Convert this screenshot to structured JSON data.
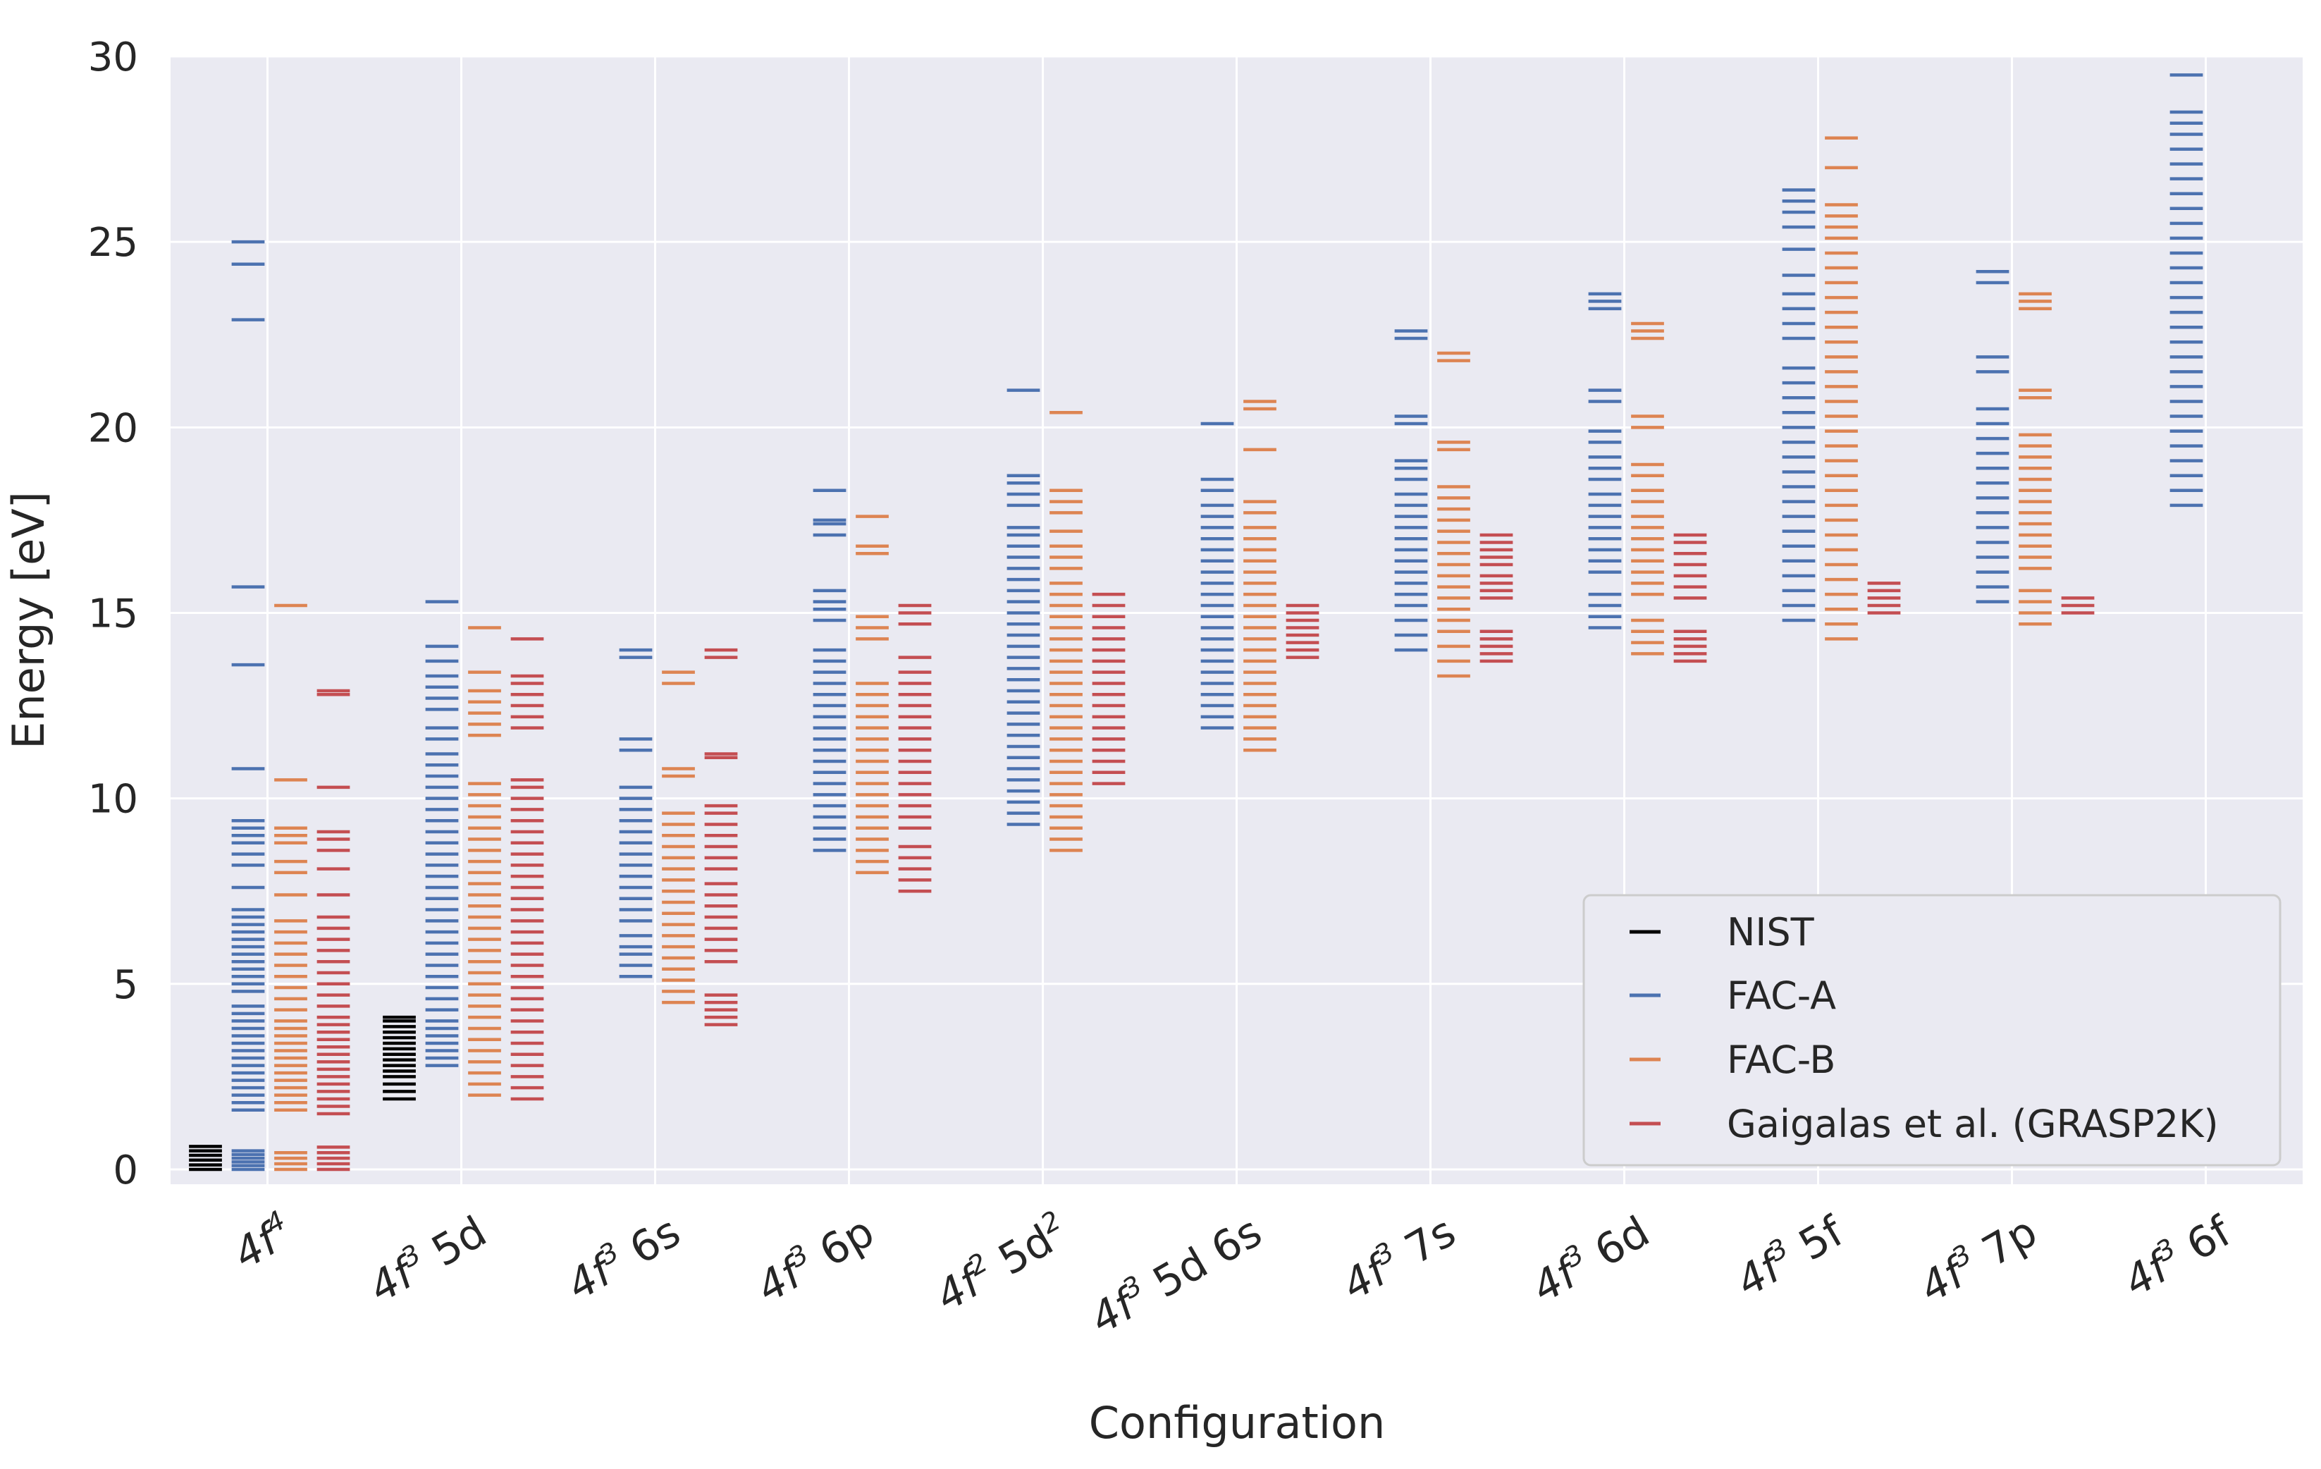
{
  "chart_data": {
    "type": "scatter",
    "title": "",
    "xlabel": "Configuration",
    "ylabel": "Energy [eV]",
    "ylim": [
      -0.4,
      30
    ],
    "yticks": [
      0,
      5,
      10,
      15,
      20,
      25,
      30
    ],
    "grid": true,
    "legend_position": "lower-right",
    "categories": [
      {
        "base": "4f",
        "sup": "4",
        "rest": ""
      },
      {
        "base": "4f",
        "sup": "3",
        "rest": " 5d"
      },
      {
        "base": "4f",
        "sup": "3",
        "rest": " 6s"
      },
      {
        "base": "4f",
        "sup": "3",
        "rest": " 6p"
      },
      {
        "base": "4f",
        "sup": "2",
        "rest": " 5d",
        "sup2": "2"
      },
      {
        "base": "4f",
        "sup": "3",
        "rest": " 5d 6s"
      },
      {
        "base": "4f",
        "sup": "3",
        "rest": " 7s"
      },
      {
        "base": "4f",
        "sup": "3",
        "rest": " 6d"
      },
      {
        "base": "4f",
        "sup": "3",
        "rest": " 5f"
      },
      {
        "base": "4f",
        "sup": "3",
        "rest": " 7p"
      },
      {
        "base": "4f",
        "sup": "3",
        "rest": " 6f"
      }
    ],
    "series": [
      {
        "name": "NIST",
        "color": "#000000",
        "levels": [
          [
            0.0,
            0.12,
            0.25,
            0.38,
            0.5,
            0.62
          ],
          [
            1.9,
            2.1,
            2.3,
            2.5,
            2.65,
            2.8,
            2.95,
            3.1,
            3.25,
            3.4,
            3.55,
            3.7,
            3.85,
            4.0,
            4.1
          ],
          [],
          [],
          [],
          [],
          [],
          [],
          [],
          [],
          []
        ]
      },
      {
        "name": "FAC-A",
        "color": "#4c72b0",
        "levels": [
          [
            0.0,
            0.1,
            0.2,
            0.3,
            0.4,
            0.5,
            1.6,
            1.8,
            2.0,
            2.2,
            2.4,
            2.6,
            2.8,
            3.0,
            3.2,
            3.4,
            3.6,
            3.8,
            4.0,
            4.2,
            4.4,
            4.8,
            5.0,
            5.2,
            5.4,
            5.6,
            5.8,
            6.0,
            6.2,
            6.4,
            6.6,
            6.8,
            7.0,
            7.6,
            8.2,
            8.5,
            8.8,
            9.0,
            9.2,
            9.4,
            10.8,
            13.6,
            15.7,
            22.9,
            24.4,
            25.0
          ],
          [
            2.8,
            3.0,
            3.2,
            3.4,
            3.6,
            3.8,
            4.0,
            4.3,
            4.6,
            4.9,
            5.2,
            5.5,
            5.8,
            6.1,
            6.4,
            6.7,
            7.0,
            7.3,
            7.6,
            7.9,
            8.2,
            8.5,
            8.8,
            9.1,
            9.4,
            9.7,
            10.0,
            10.3,
            10.6,
            10.9,
            11.2,
            11.6,
            11.9,
            12.4,
            12.7,
            13.0,
            13.3,
            13.7,
            14.1,
            15.3
          ],
          [
            5.2,
            5.5,
            5.8,
            6.0,
            6.3,
            6.7,
            7.0,
            7.3,
            7.6,
            7.9,
            8.2,
            8.5,
            8.8,
            9.1,
            9.4,
            9.7,
            10.0,
            10.3,
            11.3,
            11.6,
            13.8,
            14.0
          ],
          [
            8.6,
            8.9,
            9.2,
            9.5,
            9.8,
            10.1,
            10.4,
            10.7,
            11.0,
            11.3,
            11.6,
            11.9,
            12.2,
            12.5,
            12.8,
            13.1,
            13.4,
            13.7,
            14.0,
            14.8,
            15.1,
            15.3,
            15.6,
            17.1,
            17.4,
            17.5,
            18.3
          ],
          [
            9.3,
            9.6,
            9.9,
            10.2,
            10.5,
            10.8,
            11.1,
            11.4,
            11.7,
            12.0,
            12.3,
            12.6,
            12.9,
            13.2,
            13.5,
            13.8,
            14.1,
            14.4,
            14.7,
            15.0,
            15.3,
            15.6,
            15.9,
            16.2,
            16.5,
            16.8,
            17.1,
            17.3,
            17.9,
            18.2,
            18.5,
            18.7,
            21.0
          ],
          [
            11.9,
            12.2,
            12.5,
            12.8,
            13.1,
            13.4,
            13.7,
            14.0,
            14.3,
            14.6,
            14.9,
            15.2,
            15.5,
            15.8,
            16.1,
            16.4,
            16.7,
            17.0,
            17.3,
            17.6,
            17.9,
            18.3,
            18.6,
            20.1
          ],
          [
            14.0,
            14.4,
            14.8,
            15.2,
            15.5,
            15.8,
            16.1,
            16.4,
            16.7,
            17.0,
            17.3,
            17.6,
            17.9,
            18.2,
            18.6,
            18.9,
            19.1,
            20.1,
            20.3,
            22.4,
            22.6
          ],
          [
            14.6,
            14.9,
            15.2,
            15.5,
            16.1,
            16.4,
            16.7,
            17.0,
            17.3,
            17.6,
            17.9,
            18.2,
            18.6,
            18.9,
            19.2,
            19.6,
            19.9,
            20.7,
            21.0,
            23.2,
            23.4,
            23.6
          ],
          [
            14.8,
            15.2,
            15.6,
            16.0,
            16.4,
            16.8,
            17.2,
            17.6,
            18.0,
            18.4,
            18.8,
            19.2,
            19.6,
            20.0,
            20.4,
            20.8,
            21.2,
            21.6,
            22.4,
            22.8,
            23.2,
            23.6,
            24.1,
            24.8,
            25.4,
            25.8,
            26.1,
            26.4
          ],
          [
            15.3,
            15.7,
            16.1,
            16.5,
            16.9,
            17.3,
            17.7,
            18.1,
            18.5,
            18.9,
            19.3,
            19.7,
            20.1,
            20.5,
            21.5,
            21.9,
            23.9,
            24.2
          ],
          [
            17.9,
            18.3,
            18.7,
            19.1,
            19.5,
            19.9,
            20.3,
            20.7,
            21.1,
            21.5,
            21.9,
            22.3,
            22.7,
            23.1,
            23.5,
            23.9,
            24.3,
            24.7,
            25.1,
            25.5,
            25.9,
            26.3,
            26.7,
            27.1,
            27.5,
            27.9,
            28.2,
            28.5,
            29.5
          ]
        ]
      },
      {
        "name": "FAC-B",
        "color": "#dd8452",
        "levels": [
          [
            0.0,
            0.15,
            0.3,
            0.45,
            1.6,
            1.8,
            2.0,
            2.2,
            2.4,
            2.6,
            2.8,
            3.0,
            3.2,
            3.4,
            3.6,
            3.8,
            4.0,
            4.3,
            4.6,
            4.9,
            5.2,
            5.5,
            5.8,
            6.1,
            6.4,
            6.7,
            7.4,
            8.0,
            8.3,
            8.8,
            9.0,
            9.2,
            10.5,
            15.2
          ],
          [
            2.0,
            2.3,
            2.6,
            2.9,
            3.2,
            3.5,
            3.8,
            4.1,
            4.4,
            4.7,
            5.0,
            5.3,
            5.6,
            5.9,
            6.2,
            6.5,
            6.8,
            7.1,
            7.4,
            7.7,
            8.0,
            8.3,
            8.6,
            8.9,
            9.2,
            9.5,
            9.8,
            10.1,
            10.4,
            11.7,
            12.0,
            12.3,
            12.6,
            12.9,
            13.4,
            14.6
          ],
          [
            4.5,
            4.8,
            5.1,
            5.4,
            5.7,
            6.0,
            6.3,
            6.6,
            6.9,
            7.2,
            7.5,
            7.8,
            8.1,
            8.4,
            8.7,
            9.0,
            9.3,
            9.6,
            10.6,
            10.8,
            13.1,
            13.4
          ],
          [
            8.0,
            8.3,
            8.6,
            8.9,
            9.2,
            9.5,
            9.8,
            10.1,
            10.4,
            10.7,
            11.0,
            11.3,
            11.6,
            11.9,
            12.2,
            12.5,
            12.8,
            13.1,
            14.3,
            14.6,
            14.9,
            16.6,
            16.8,
            17.6
          ],
          [
            8.6,
            8.9,
            9.2,
            9.5,
            9.8,
            10.1,
            10.4,
            10.7,
            11.0,
            11.3,
            11.6,
            11.9,
            12.2,
            12.5,
            12.8,
            13.1,
            13.4,
            13.7,
            14.0,
            14.3,
            14.6,
            14.9,
            15.2,
            15.5,
            15.8,
            16.2,
            16.5,
            16.8,
            17.2,
            17.7,
            18.0,
            18.3,
            20.4
          ],
          [
            11.3,
            11.6,
            11.9,
            12.2,
            12.5,
            12.8,
            13.1,
            13.4,
            13.7,
            14.0,
            14.3,
            14.6,
            14.9,
            15.2,
            15.5,
            15.8,
            16.1,
            16.4,
            16.7,
            17.0,
            17.3,
            17.7,
            18.0,
            19.4,
            20.5,
            20.7
          ],
          [
            13.3,
            13.7,
            14.1,
            14.5,
            14.8,
            15.1,
            15.4,
            15.7,
            16.0,
            16.3,
            16.6,
            16.9,
            17.2,
            17.5,
            17.8,
            18.1,
            18.4,
            19.4,
            19.6,
            21.8,
            22.0
          ],
          [
            13.9,
            14.2,
            14.5,
            14.8,
            15.5,
            15.8,
            16.1,
            16.4,
            16.7,
            17.0,
            17.3,
            17.6,
            18.0,
            18.3,
            18.7,
            19.0,
            20.0,
            20.3,
            22.4,
            22.6,
            22.8
          ],
          [
            14.3,
            14.7,
            15.1,
            15.5,
            15.9,
            16.3,
            16.7,
            17.1,
            17.5,
            17.9,
            18.3,
            18.7,
            19.1,
            19.5,
            19.9,
            20.3,
            20.7,
            21.1,
            21.5,
            21.9,
            22.3,
            22.7,
            23.1,
            23.5,
            23.9,
            24.3,
            24.7,
            25.1,
            25.4,
            25.7,
            26.0,
            27.0,
            27.8
          ],
          [
            14.7,
            15.0,
            15.3,
            15.6,
            16.2,
            16.5,
            16.8,
            17.1,
            17.4,
            17.7,
            18.0,
            18.3,
            18.6,
            18.9,
            19.2,
            19.5,
            19.8,
            20.8,
            21.0,
            23.2,
            23.4,
            23.6
          ]
        ]
      },
      {
        "name": "Gaigalas et al. (GRASP2K)",
        "color": "#c44e52",
        "levels": [
          [
            0.0,
            0.15,
            0.3,
            0.45,
            0.6,
            1.5,
            1.7,
            1.9,
            2.1,
            2.3,
            2.5,
            2.7,
            2.9,
            3.1,
            3.3,
            3.5,
            3.7,
            3.9,
            4.1,
            4.4,
            4.7,
            5.0,
            5.3,
            5.6,
            5.9,
            6.2,
            6.5,
            6.8,
            7.4,
            8.1,
            8.6,
            8.9,
            9.1,
            10.3,
            12.8,
            12.9
          ],
          [
            1.9,
            2.2,
            2.5,
            2.8,
            3.1,
            3.4,
            3.7,
            4.0,
            4.3,
            4.6,
            4.9,
            5.2,
            5.5,
            5.8,
            6.1,
            6.4,
            6.7,
            7.0,
            7.3,
            7.6,
            7.9,
            8.2,
            8.5,
            8.8,
            9.1,
            9.4,
            9.7,
            10.0,
            10.3,
            10.5,
            11.9,
            12.2,
            12.5,
            12.8,
            13.1,
            13.3,
            14.3
          ],
          [
            3.9,
            4.1,
            4.3,
            4.5,
            4.7,
            5.6,
            5.9,
            6.2,
            6.5,
            6.8,
            7.1,
            7.4,
            7.7,
            8.1,
            8.4,
            8.7,
            9.0,
            9.3,
            9.6,
            9.8,
            11.1,
            11.2,
            13.8,
            14.0
          ],
          [
            7.5,
            7.8,
            8.1,
            8.4,
            8.7,
            9.2,
            9.5,
            9.8,
            10.1,
            10.4,
            10.7,
            11.0,
            11.3,
            11.6,
            11.9,
            12.2,
            12.5,
            12.8,
            13.1,
            13.4,
            13.8,
            14.7,
            15.0,
            15.2
          ],
          [
            10.4,
            10.7,
            11.0,
            11.3,
            11.6,
            11.9,
            12.2,
            12.5,
            12.8,
            13.1,
            13.4,
            13.7,
            14.0,
            14.3,
            14.6,
            14.9,
            15.2,
            15.5
          ],
          [
            13.8,
            14.0,
            14.2,
            14.4,
            14.6,
            14.8,
            15.0,
            15.2
          ],
          [
            13.7,
            13.9,
            14.1,
            14.3,
            14.5,
            15.4,
            15.6,
            15.8,
            16.0,
            16.3,
            16.5,
            16.7,
            16.9,
            17.1
          ],
          [
            13.7,
            13.9,
            14.1,
            14.3,
            14.5,
            15.4,
            15.7,
            16.0,
            16.3,
            16.6,
            16.9,
            17.1
          ],
          [
            15.0,
            15.2,
            15.4,
            15.6,
            15.8
          ],
          [
            15.0,
            15.2,
            15.4
          ],
          []
        ]
      }
    ]
  }
}
